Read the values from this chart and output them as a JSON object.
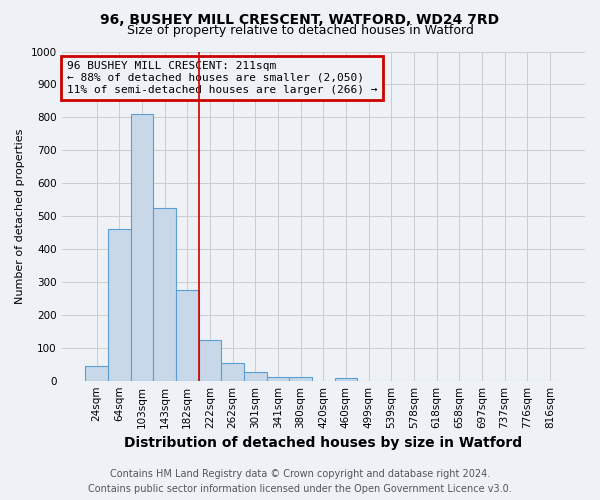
{
  "title": "96, BUSHEY MILL CRESCENT, WATFORD, WD24 7RD",
  "subtitle": "Size of property relative to detached houses in Watford",
  "xlabel": "Distribution of detached houses by size in Watford",
  "ylabel": "Number of detached properties",
  "footer_line1": "Contains HM Land Registry data © Crown copyright and database right 2024.",
  "footer_line2": "Contains public sector information licensed under the Open Government Licence v3.0.",
  "bin_labels": [
    "24sqm",
    "64sqm",
    "103sqm",
    "143sqm",
    "182sqm",
    "222sqm",
    "262sqm",
    "301sqm",
    "341sqm",
    "380sqm",
    "420sqm",
    "460sqm",
    "499sqm",
    "539sqm",
    "578sqm",
    "618sqm",
    "658sqm",
    "697sqm",
    "737sqm",
    "776sqm",
    "816sqm"
  ],
  "bar_heights": [
    45,
    460,
    810,
    525,
    275,
    125,
    55,
    25,
    10,
    10,
    0,
    8,
    0,
    0,
    0,
    0,
    0,
    0,
    0,
    0,
    0
  ],
  "bar_color": "#c8d8e8",
  "bar_edge_color": "#5a9fd4",
  "property_line_x": 4.5,
  "property_line_color": "#cc0000",
  "annotation_text": "96 BUSHEY MILL CRESCENT: 211sqm\n← 88% of detached houses are smaller (2,050)\n11% of semi-detached houses are larger (266) →",
  "annotation_box_color": "#cc0000",
  "ylim": [
    0,
    1000
  ],
  "yticks": [
    0,
    100,
    200,
    300,
    400,
    500,
    600,
    700,
    800,
    900,
    1000
  ],
  "grid_color": "#cccccc",
  "background_color": "#eef2f7",
  "title_fontsize": 10,
  "subtitle_fontsize": 9,
  "xlabel_fontsize": 10,
  "ylabel_fontsize": 8,
  "tick_fontsize": 7.5,
  "annotation_fontsize": 8,
  "footer_fontsize": 7
}
